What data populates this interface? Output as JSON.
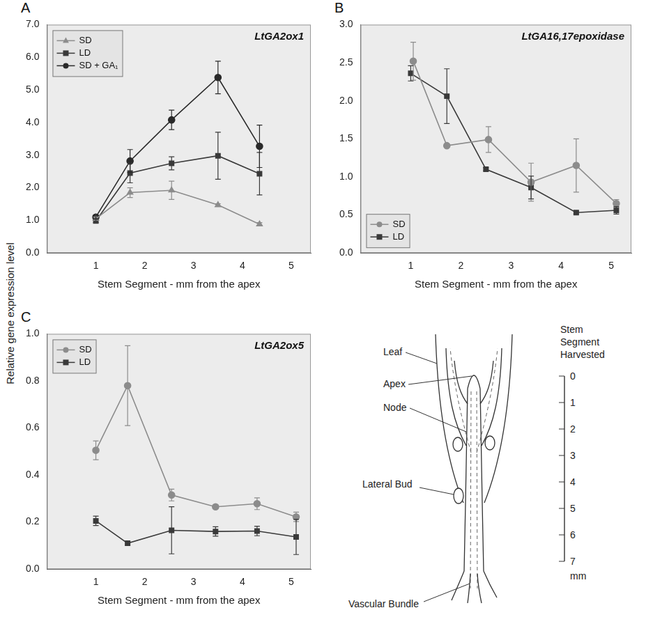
{
  "chart_data": [
    {
      "type": "line",
      "panel": "A",
      "title": "LtGA2ox1",
      "xlabel": "Stem Segment - mm from the apex",
      "xlim": [
        0,
        5.4
      ],
      "xticks": [
        1,
        2,
        3,
        4,
        5
      ],
      "ylim": [
        0,
        7
      ],
      "yticks": [
        {
          "value": 0,
          "label": "0.0"
        },
        {
          "value": 1,
          "label": "1.0"
        },
        {
          "value": 2,
          "label": "2.0"
        },
        {
          "value": 3,
          "label": "3.0"
        },
        {
          "value": 4,
          "label": "4.0"
        },
        {
          "value": 5,
          "label": "5.0"
        },
        {
          "value": 6,
          "label": "6.0"
        },
        {
          "value": 7,
          "label": "7.0"
        }
      ],
      "grid": false,
      "legend": "top-left",
      "series": [
        {
          "name": "SD",
          "color": "#8c8c8c",
          "marker": "triangle",
          "x": [
            1.0,
            1.7,
            2.55,
            3.5,
            4.35
          ],
          "values": [
            1.05,
            1.85,
            1.92,
            1.47,
            0.88
          ],
          "errors": [
            0.05,
            0.15,
            0.28,
            0.04,
            0.05
          ]
        },
        {
          "name": "LD",
          "color": "#3a3a3a",
          "marker": "square",
          "x": [
            1.0,
            1.7,
            2.55,
            3.5,
            4.35
          ],
          "values": [
            0.98,
            2.45,
            2.75,
            2.98,
            2.43
          ],
          "errors": [
            0.05,
            0.3,
            0.2,
            0.72,
            0.65
          ]
        },
        {
          "name": "SD + GA₁",
          "color": "#2a2a2a",
          "marker": "circle",
          "x": [
            1.0,
            1.7,
            2.55,
            3.5,
            4.35
          ],
          "values": [
            1.1,
            2.82,
            4.08,
            5.38,
            3.27
          ],
          "errors": [
            0.05,
            0.35,
            0.3,
            0.5,
            0.65
          ]
        }
      ]
    },
    {
      "type": "line",
      "panel": "B",
      "title": "LtGA16,17epoxidase",
      "xlabel": "Stem Segment - mm from the apex",
      "xlim": [
        0,
        5.4
      ],
      "xticks": [
        1,
        2,
        3,
        4,
        5
      ],
      "ylim": [
        0,
        3
      ],
      "yticks": [
        {
          "value": 0,
          "label": "0.0"
        },
        {
          "value": 0.5,
          "label": "0.5"
        },
        {
          "value": 1,
          "label": "1.0"
        },
        {
          "value": 1.5,
          "label": "1.5"
        },
        {
          "value": 2,
          "label": "2.0"
        },
        {
          "value": 2.5,
          "label": "2.5"
        },
        {
          "value": 3,
          "label": "3.0"
        }
      ],
      "grid": false,
      "legend": "bottom-left",
      "series": [
        {
          "name": "SD",
          "color": "#8c8c8c",
          "marker": "circle",
          "x": [
            1.05,
            1.72,
            2.55,
            3.4,
            4.3,
            5.1
          ],
          "values": [
            2.52,
            1.41,
            1.49,
            0.93,
            1.15,
            0.65
          ],
          "errors": [
            0.25,
            0.02,
            0.17,
            0.25,
            0.35,
            0.05
          ]
        },
        {
          "name": "LD",
          "color": "#3a3a3a",
          "marker": "square",
          "x": [
            1.0,
            1.72,
            2.5,
            3.4,
            4.3,
            5.1
          ],
          "values": [
            2.36,
            2.06,
            1.1,
            0.86,
            0.53,
            0.56
          ],
          "errors": [
            0.1,
            0.36,
            0.02,
            0.15,
            0.02,
            0.05
          ]
        }
      ]
    },
    {
      "type": "line",
      "panel": "C",
      "title": "LtGA2ox5",
      "xlabel": "Stem Segment - mm from the apex",
      "xlim": [
        0,
        5.4
      ],
      "xticks": [
        1,
        2,
        3,
        4,
        5
      ],
      "ylim": [
        0,
        1
      ],
      "yticks": [
        {
          "value": 0,
          "label": "0.0"
        },
        {
          "value": 0.2,
          "label": "0.2"
        },
        {
          "value": 0.4,
          "label": "0.4"
        },
        {
          "value": 0.6,
          "label": "0.6"
        },
        {
          "value": 0.8,
          "label": "0.8"
        },
        {
          "value": 1,
          "label": "1.0"
        }
      ],
      "grid": false,
      "legend": "top-left",
      "series": [
        {
          "name": "SD",
          "color": "#8c8c8c",
          "marker": "circle",
          "x": [
            1.0,
            1.65,
            2.55,
            3.45,
            4.3,
            5.1
          ],
          "values": [
            0.505,
            0.78,
            0.315,
            0.265,
            0.278,
            0.222
          ],
          "errors": [
            0.04,
            0.17,
            0.025,
            0.008,
            0.025,
            0.02
          ]
        },
        {
          "name": "LD",
          "color": "#3a3a3a",
          "marker": "square",
          "x": [
            1.0,
            1.65,
            2.55,
            3.45,
            4.3,
            5.1
          ],
          "values": [
            0.205,
            0.11,
            0.165,
            0.16,
            0.162,
            0.137
          ],
          "errors": [
            0.02,
            0.008,
            0.1,
            0.02,
            0.02,
            0.075
          ]
        }
      ]
    }
  ],
  "shared_y_label": "Relative gene expression level",
  "diagram": {
    "labels": {
      "leaf": "Leaf",
      "apex": "Apex",
      "node": "Node",
      "lateral_bud": "Lateral Bud",
      "vascular_bundle": "Vascular Bundle"
    },
    "scale": {
      "title": "Stem Segment Harvested",
      "ticks": [
        0,
        1,
        2,
        3,
        4,
        5,
        6,
        7
      ],
      "unit": "mm"
    }
  }
}
